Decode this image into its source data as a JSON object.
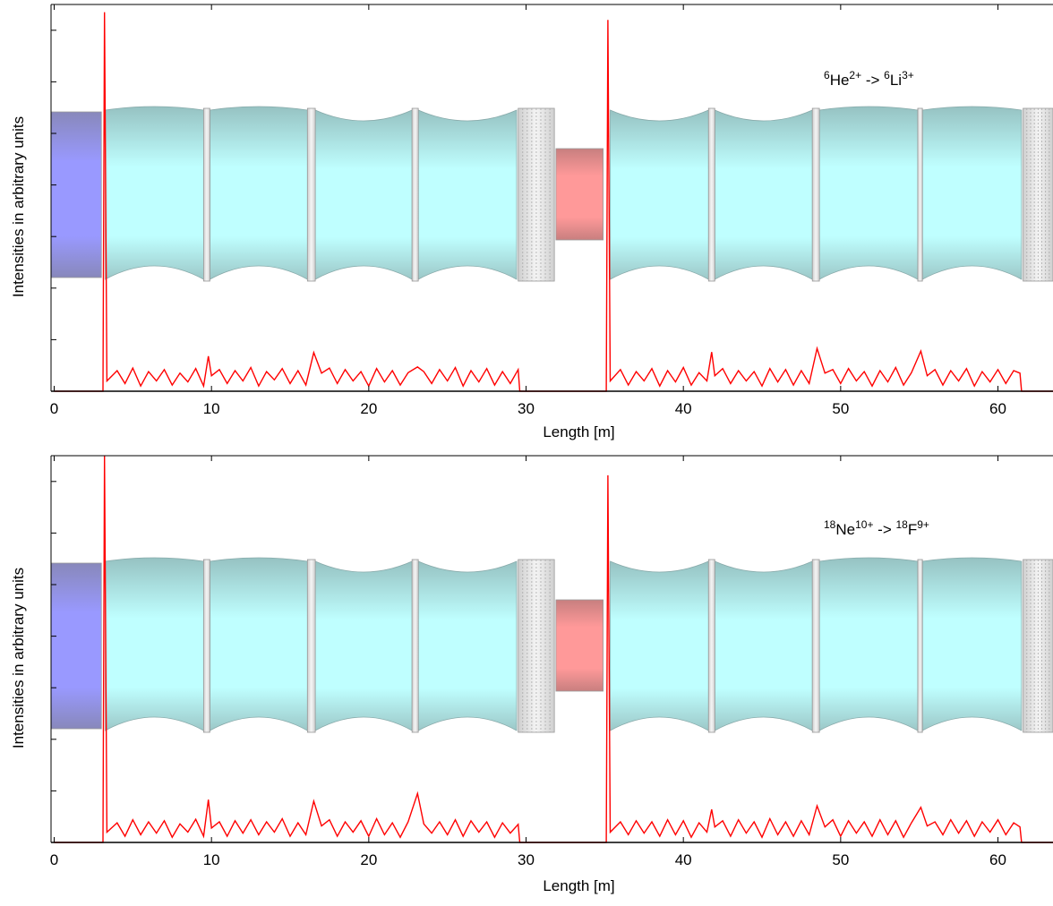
{
  "chart_data": [
    {
      "type": "line",
      "xlabel": "Length [m]",
      "ylabel": "Intensities in arbitrary units",
      "color": "#ff0000",
      "annotation": [
        {
          "text": "6",
          "superscript": true
        },
        {
          "text": "He",
          "superscript": false
        },
        {
          "text": "2+",
          "superscript": true
        },
        {
          "text": " -> ",
          "superscript": false
        },
        {
          "text": "6",
          "superscript": true
        },
        {
          "text": "Li",
          "superscript": false
        },
        {
          "text": "3+",
          "superscript": true
        }
      ],
      "xlim": [
        -0.2,
        63.5
      ],
      "xticks": [
        0,
        10,
        20,
        30,
        40,
        50,
        60
      ],
      "ylim": [
        0,
        7.5
      ],
      "yticks": [
        0,
        1,
        2,
        3,
        4,
        5,
        6,
        7
      ],
      "x": [
        0,
        3.1,
        3.2,
        3.35,
        4,
        4.5,
        5,
        5.5,
        6,
        6.5,
        7,
        7.5,
        8,
        8.5,
        9,
        9.5,
        9.8,
        10,
        10.5,
        11,
        11.5,
        12,
        12.5,
        13,
        13.5,
        14,
        14.5,
        15,
        15.5,
        16,
        16.5,
        17,
        17.5,
        18,
        18.5,
        19,
        19.5,
        20,
        20.5,
        21,
        21.5,
        22,
        22.5,
        23.1,
        23.5,
        24,
        24.5,
        25,
        25.5,
        26,
        26.5,
        27,
        27.5,
        28,
        28.5,
        29,
        29.5,
        29.6,
        35.0,
        35.1,
        35.2,
        35.35,
        36,
        36.5,
        37,
        37.5,
        38,
        38.5,
        39,
        39.5,
        40,
        40.5,
        41,
        41.5,
        41.8,
        42,
        42.5,
        43,
        43.5,
        44,
        44.5,
        45,
        45.5,
        46,
        46.5,
        47,
        47.5,
        48,
        48.5,
        49,
        49.5,
        50,
        50.5,
        51,
        51.5,
        52,
        52.5,
        53,
        53.5,
        54,
        54.5,
        55.1,
        55.5,
        56,
        56.5,
        57,
        57.5,
        58,
        58.5,
        59,
        59.5,
        60,
        60.5,
        61,
        61.4,
        61.5,
        63.5
      ],
      "values": [
        0,
        0,
        7.35,
        0.2,
        0.4,
        0.15,
        0.45,
        0.1,
        0.38,
        0.2,
        0.42,
        0.12,
        0.35,
        0.18,
        0.44,
        0.1,
        0.68,
        0.3,
        0.42,
        0.15,
        0.4,
        0.2,
        0.46,
        0.1,
        0.38,
        0.22,
        0.44,
        0.15,
        0.4,
        0.12,
        0.75,
        0.35,
        0.45,
        0.15,
        0.42,
        0.2,
        0.38,
        0.1,
        0.44,
        0.18,
        0.4,
        0.12,
        0.36,
        0.47,
        0.38,
        0.15,
        0.42,
        0.2,
        0.46,
        0.1,
        0.4,
        0.18,
        0.44,
        0.12,
        0.38,
        0.15,
        0.42,
        0,
        0,
        0,
        7.2,
        0.2,
        0.42,
        0.12,
        0.38,
        0.2,
        0.44,
        0.1,
        0.4,
        0.18,
        0.46,
        0.12,
        0.36,
        0.2,
        0.76,
        0.3,
        0.44,
        0.15,
        0.4,
        0.2,
        0.38,
        0.1,
        0.44,
        0.18,
        0.42,
        0.12,
        0.4,
        0.15,
        0.83,
        0.35,
        0.42,
        0.15,
        0.44,
        0.2,
        0.38,
        0.1,
        0.4,
        0.18,
        0.46,
        0.12,
        0.36,
        0.78,
        0.3,
        0.42,
        0.12,
        0.4,
        0.2,
        0.44,
        0.1,
        0.38,
        0.18,
        0.42,
        0.15,
        0.4,
        0.35,
        0,
        0
      ]
    },
    {
      "type": "line",
      "xlabel": "Length [m]",
      "ylabel": "Intensities in arbitrary units",
      "color": "#ff0000",
      "annotation": [
        {
          "text": "18",
          "superscript": true
        },
        {
          "text": "Ne",
          "superscript": false
        },
        {
          "text": "10+",
          "superscript": true
        },
        {
          "text": " -> ",
          "superscript": false
        },
        {
          "text": "18",
          "superscript": true
        },
        {
          "text": "F",
          "superscript": false
        },
        {
          "text": "9+",
          "superscript": true
        }
      ],
      "xlim": [
        -0.2,
        63.5
      ],
      "xticks": [
        0,
        10,
        20,
        30,
        40,
        50,
        60
      ],
      "ylim": [
        0,
        7.5
      ],
      "yticks": [
        0,
        1,
        2,
        3,
        4,
        5,
        6,
        7
      ],
      "x": [
        0,
        3.1,
        3.2,
        3.35,
        4,
        4.5,
        5,
        5.5,
        6,
        6.5,
        7,
        7.5,
        8,
        8.5,
        9,
        9.5,
        9.8,
        10,
        10.5,
        11,
        11.5,
        12,
        12.5,
        13,
        13.5,
        14,
        14.5,
        15,
        15.5,
        16,
        16.5,
        17,
        17.5,
        18,
        18.5,
        19,
        19.5,
        20,
        20.5,
        21,
        21.5,
        22,
        22.5,
        23.1,
        23.5,
        24,
        24.5,
        25,
        25.5,
        26,
        26.5,
        27,
        27.5,
        28,
        28.5,
        29,
        29.5,
        29.6,
        35.0,
        35.1,
        35.2,
        35.35,
        36,
        36.5,
        37,
        37.5,
        38,
        38.5,
        39,
        39.5,
        40,
        40.5,
        41,
        41.5,
        41.8,
        42,
        42.5,
        43,
        43.5,
        44,
        44.5,
        45,
        45.5,
        46,
        46.5,
        47,
        47.5,
        48,
        48.5,
        49,
        49.5,
        50,
        50.5,
        51,
        51.5,
        52,
        52.5,
        53,
        53.5,
        54,
        54.5,
        55.1,
        55.5,
        56,
        56.5,
        57,
        57.5,
        58,
        58.5,
        59,
        59.5,
        60,
        60.5,
        61,
        61.4,
        61.5,
        63.5
      ],
      "values": [
        0,
        0,
        7.5,
        0.2,
        0.38,
        0.12,
        0.44,
        0.15,
        0.4,
        0.18,
        0.42,
        0.1,
        0.36,
        0.2,
        0.45,
        0.12,
        0.83,
        0.28,
        0.4,
        0.12,
        0.42,
        0.18,
        0.44,
        0.15,
        0.4,
        0.2,
        0.46,
        0.12,
        0.38,
        0.15,
        0.8,
        0.32,
        0.44,
        0.12,
        0.4,
        0.2,
        0.42,
        0.12,
        0.46,
        0.15,
        0.38,
        0.1,
        0.4,
        0.95,
        0.36,
        0.18,
        0.4,
        0.15,
        0.44,
        0.12,
        0.42,
        0.2,
        0.4,
        0.1,
        0.38,
        0.18,
        0.35,
        0,
        0,
        0,
        7.12,
        0.2,
        0.4,
        0.15,
        0.42,
        0.18,
        0.4,
        0.12,
        0.44,
        0.15,
        0.42,
        0.1,
        0.38,
        0.2,
        0.64,
        0.3,
        0.42,
        0.12,
        0.44,
        0.18,
        0.4,
        0.1,
        0.46,
        0.15,
        0.4,
        0.12,
        0.42,
        0.15,
        0.71,
        0.3,
        0.44,
        0.12,
        0.42,
        0.18,
        0.4,
        0.12,
        0.44,
        0.15,
        0.42,
        0.1,
        0.38,
        0.68,
        0.32,
        0.4,
        0.15,
        0.44,
        0.18,
        0.42,
        0.12,
        0.4,
        0.2,
        0.44,
        0.15,
        0.38,
        0.3,
        0,
        0
      ]
    }
  ]
}
